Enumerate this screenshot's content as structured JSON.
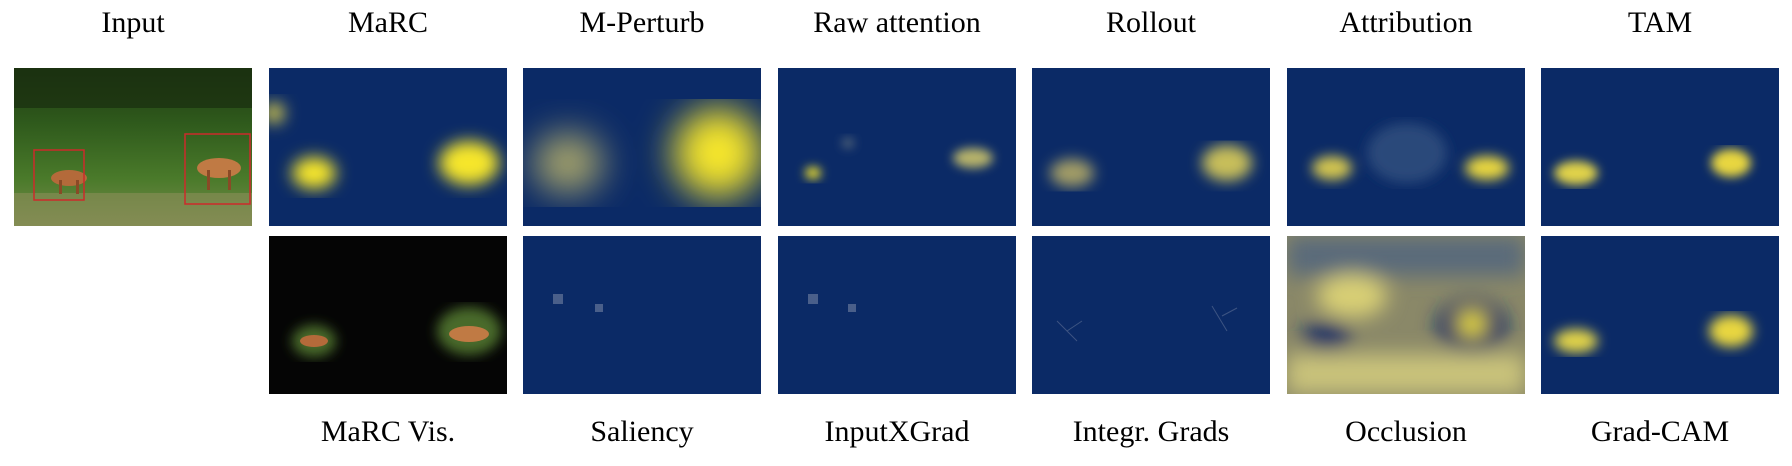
{
  "columns": [
    {
      "top": "Input",
      "bottom": ""
    },
    {
      "top": "MaRC",
      "bottom": "MaRC Vis."
    },
    {
      "top": "M-Perturb",
      "bottom": "Saliency"
    },
    {
      "top": "Raw attention",
      "bottom": "InputXGrad"
    },
    {
      "top": "Rollout",
      "bottom": "Integr. Grads"
    },
    {
      "top": "Attribution",
      "bottom": "Occlusion"
    },
    {
      "top": "TAM",
      "bottom": "Grad-CAM"
    }
  ],
  "colors": {
    "heat_low": "#0b2a66",
    "heat_mid": "#7f8b6e",
    "heat_high": "#f6e62a",
    "bbox": "#cc2b2b"
  }
}
